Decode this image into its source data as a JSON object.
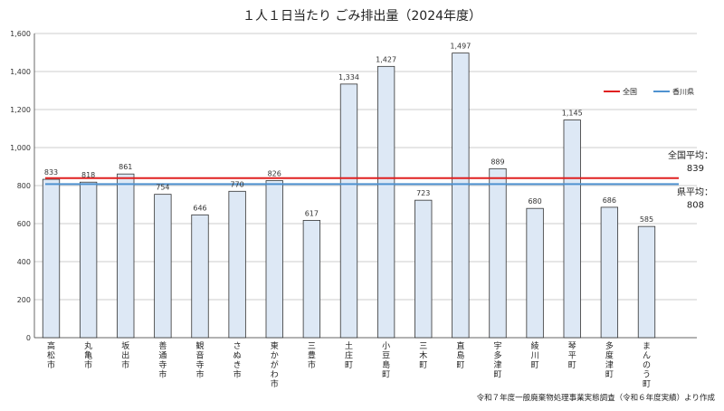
{
  "chart_data": {
    "type": "bar",
    "title": "１人１日当たり ごみ排出量（2024年度）",
    "categories": [
      "高松市",
      "丸亀市",
      "坂出市",
      "善通寺市",
      "観音寺市",
      "さぬき市",
      "東かがわ市",
      "三豊市",
      "土庄町",
      "小豆島町",
      "三木町",
      "直島町",
      "宇多津町",
      "綾川町",
      "琴平町",
      "多度津町",
      "まんのう町"
    ],
    "values": [
      833,
      818,
      861,
      754,
      646,
      770,
      826,
      617,
      1334,
      1427,
      723,
      1497,
      889,
      680,
      1145,
      686,
      585
    ],
    "value_labels": [
      "833",
      "818",
      "861",
      "754",
      "646",
      "770",
      "826",
      "617",
      "1,334",
      "1,427",
      "723",
      "1,497",
      "889",
      "680",
      "1,145",
      "686",
      "585"
    ],
    "ylim": [
      0,
      1600
    ],
    "yticks": [
      0,
      200,
      400,
      600,
      800,
      1000,
      1200,
      1400,
      1600
    ],
    "ytick_labels": [
      "0",
      "200",
      "400",
      "600",
      "800",
      "1,000",
      "1,200",
      "1,400",
      "1,600"
    ],
    "grid": true,
    "reference_lines": [
      {
        "name": "全国",
        "value": 839,
        "color": "#e02020",
        "annotation_label": "全国平均：",
        "annotation_value": "839"
      },
      {
        "name": "香川県",
        "value": 808,
        "color": "#4f92d0",
        "annotation_label": "県平均：",
        "annotation_value": "808"
      }
    ],
    "legend": {
      "placement": "top-right",
      "entries": [
        "全国",
        "香川県"
      ]
    },
    "bar_fill": "#dde8f5",
    "bar_stroke": "#333333",
    "source": "令和７年度一般廃棄物処理事業実態調査（令和６年度実績）より作成"
  }
}
